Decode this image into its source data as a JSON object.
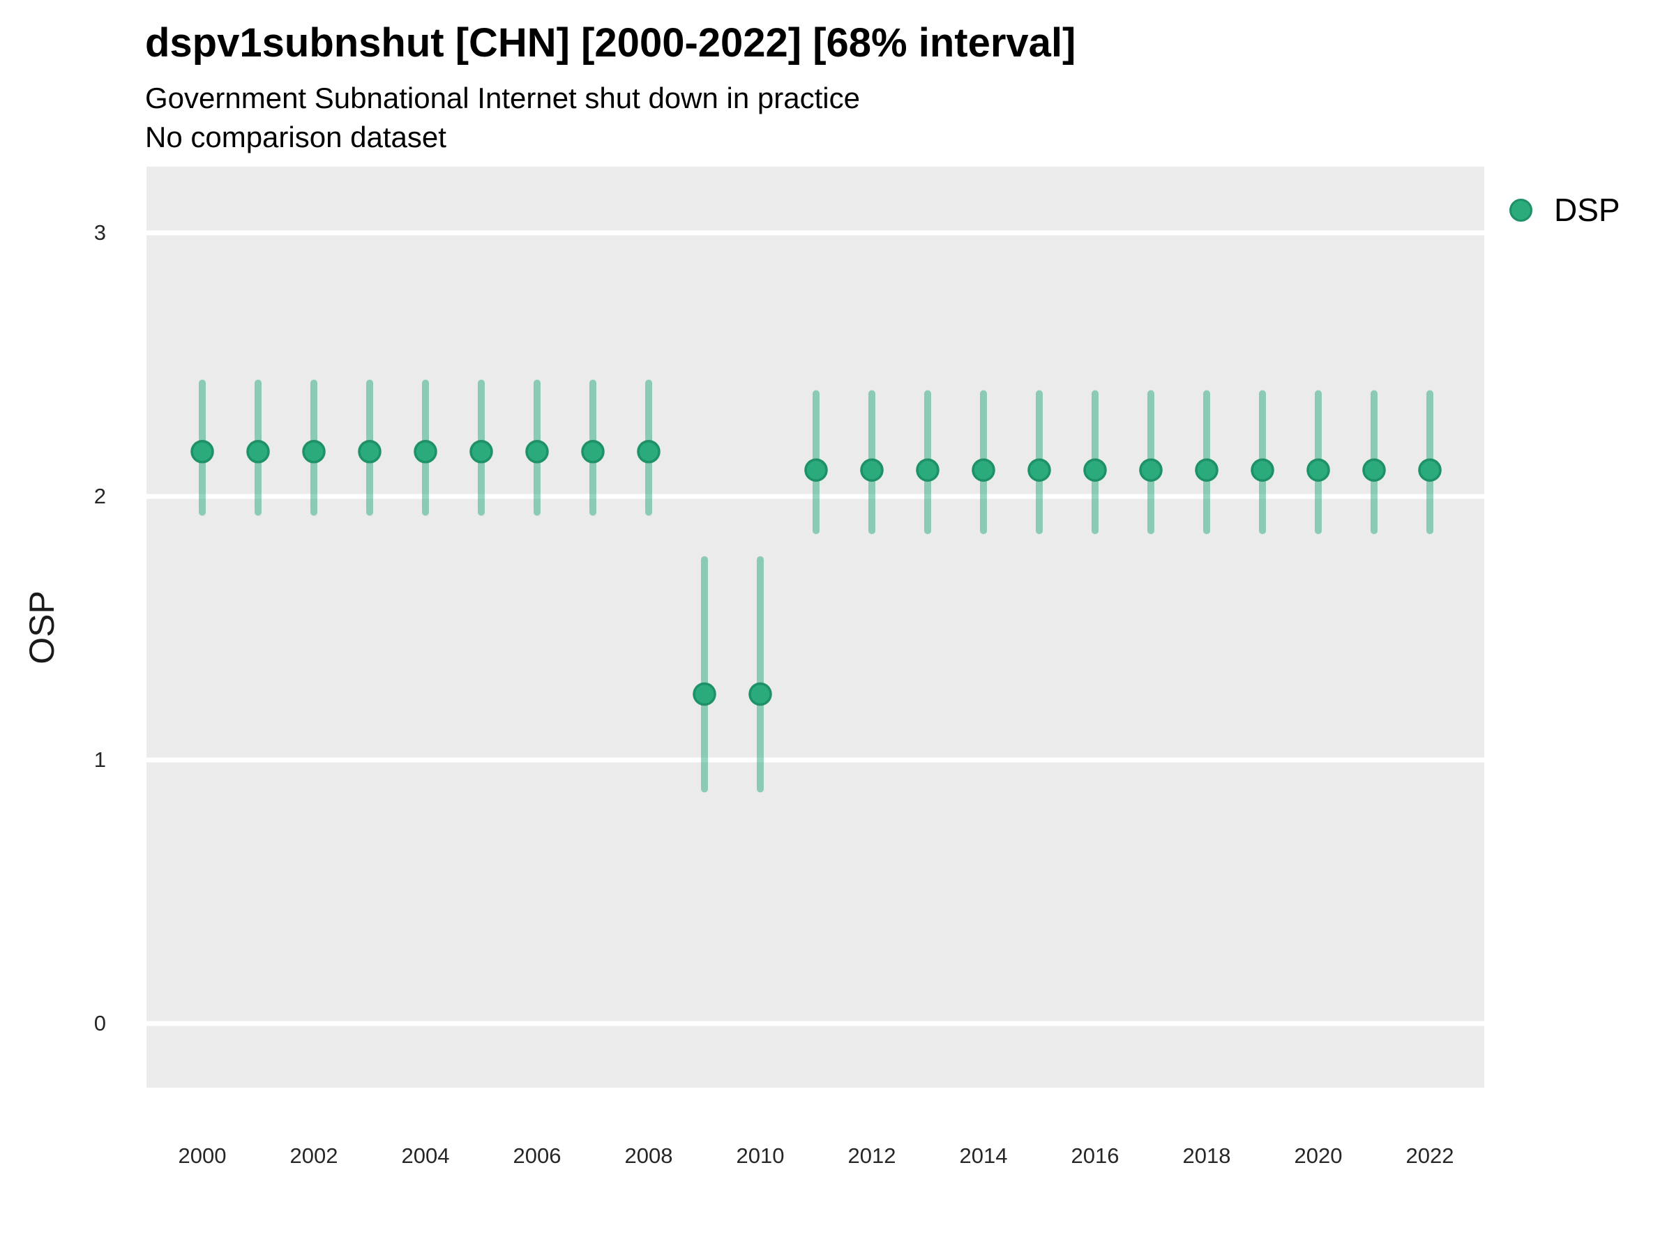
{
  "chart_data": {
    "type": "scatter",
    "variant": "pointrange",
    "title": "dspv1subnshut [CHN] [2000-2022] [68% interval]",
    "subtitle": "Government Subnational Internet shut down in practice",
    "note": "No comparison dataset",
    "ylabel": "OSP",
    "legend": {
      "label": "DSP",
      "position": "right-top"
    },
    "xticks": [
      2000,
      2002,
      2004,
      2006,
      2008,
      2010,
      2012,
      2014,
      2016,
      2018,
      2020,
      2022
    ],
    "yticks": [
      3,
      2,
      1,
      0
    ],
    "ylim": [
      0,
      3
    ],
    "y_range_shown": [
      -0.25,
      3.25
    ],
    "x_range_shown": [
      1999,
      2023
    ],
    "grid": "horizontal-major-only",
    "series": [
      {
        "name": "DSP",
        "points": [
          {
            "year": 2000,
            "est": 2.17,
            "lo": 1.94,
            "hi": 2.43
          },
          {
            "year": 2001,
            "est": 2.17,
            "lo": 1.94,
            "hi": 2.43
          },
          {
            "year": 2002,
            "est": 2.17,
            "lo": 1.94,
            "hi": 2.43
          },
          {
            "year": 2003,
            "est": 2.17,
            "lo": 1.94,
            "hi": 2.43
          },
          {
            "year": 2004,
            "est": 2.17,
            "lo": 1.94,
            "hi": 2.43
          },
          {
            "year": 2005,
            "est": 2.17,
            "lo": 1.94,
            "hi": 2.43
          },
          {
            "year": 2006,
            "est": 2.17,
            "lo": 1.94,
            "hi": 2.43
          },
          {
            "year": 2007,
            "est": 2.17,
            "lo": 1.94,
            "hi": 2.43
          },
          {
            "year": 2008,
            "est": 2.17,
            "lo": 1.94,
            "hi": 2.43
          },
          {
            "year": 2009,
            "est": 1.25,
            "lo": 0.89,
            "hi": 1.76
          },
          {
            "year": 2010,
            "est": 1.25,
            "lo": 0.89,
            "hi": 1.76
          },
          {
            "year": 2011,
            "est": 2.1,
            "lo": 1.87,
            "hi": 2.39
          },
          {
            "year": 2012,
            "est": 2.1,
            "lo": 1.87,
            "hi": 2.39
          },
          {
            "year": 2013,
            "est": 2.1,
            "lo": 1.87,
            "hi": 2.39
          },
          {
            "year": 2014,
            "est": 2.1,
            "lo": 1.87,
            "hi": 2.39
          },
          {
            "year": 2015,
            "est": 2.1,
            "lo": 1.87,
            "hi": 2.39
          },
          {
            "year": 2016,
            "est": 2.1,
            "lo": 1.87,
            "hi": 2.39
          },
          {
            "year": 2017,
            "est": 2.1,
            "lo": 1.87,
            "hi": 2.39
          },
          {
            "year": 2018,
            "est": 2.1,
            "lo": 1.87,
            "hi": 2.39
          },
          {
            "year": 2019,
            "est": 2.1,
            "lo": 1.87,
            "hi": 2.39
          },
          {
            "year": 2020,
            "est": 2.1,
            "lo": 1.87,
            "hi": 2.39
          },
          {
            "year": 2021,
            "est": 2.1,
            "lo": 1.87,
            "hi": 2.39
          },
          {
            "year": 2022,
            "est": 2.1,
            "lo": 1.87,
            "hi": 2.39
          }
        ]
      }
    ],
    "colors": {
      "point": "#2BAA7C",
      "point_stroke": "#1E9166",
      "interval": "rgba(43,170,124,0.5)",
      "panel_bg": "#EBEBEB",
      "grid": "#FFFFFF",
      "text": "#000000",
      "tick_text": "#262626"
    }
  }
}
